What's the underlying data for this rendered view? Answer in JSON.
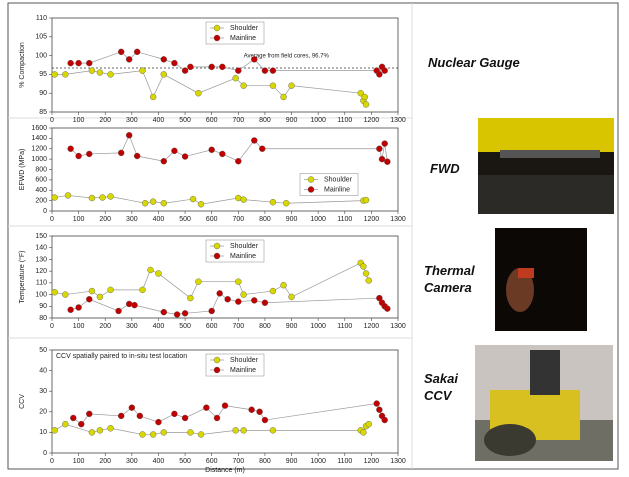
{
  "chart_data": [
    {
      "type": "line",
      "ylabel": "% Compaction",
      "ylim": [
        85,
        110
      ],
      "yticks": [
        85,
        90,
        95,
        100,
        105,
        110
      ],
      "xlim": [
        0,
        1300
      ],
      "xticks": [
        0,
        100,
        200,
        300,
        400,
        500,
        600,
        700,
        800,
        900,
        1000,
        1100,
        1200,
        1300
      ],
      "legend": "upper center",
      "reference_line": {
        "value": 96.7,
        "label": "Average from field cores, 96.7%"
      },
      "series": [
        {
          "name": "Shoulder",
          "color": "#d8d800",
          "x": [
            10,
            50,
            150,
            180,
            220,
            340,
            380,
            420,
            550,
            690,
            720,
            830,
            870,
            900,
            1160,
            1170,
            1175,
            1180
          ],
          "values": [
            95,
            95,
            96,
            95.5,
            95,
            96,
            89,
            95,
            90,
            94,
            92,
            92,
            89,
            92,
            90,
            88,
            89,
            87
          ]
        },
        {
          "name": "Mainline",
          "color": "#c00000",
          "x": [
            70,
            100,
            140,
            260,
            290,
            320,
            420,
            460,
            500,
            520,
            600,
            640,
            700,
            760,
            800,
            830,
            1220,
            1230,
            1240,
            1250
          ],
          "values": [
            98,
            98,
            98,
            101,
            99,
            101,
            99,
            98,
            96,
            97,
            97,
            97,
            96,
            99,
            96,
            96,
            96,
            95,
            97,
            96
          ]
        }
      ]
    },
    {
      "type": "line",
      "ylabel": "EFWD (MPa)",
      "ylim": [
        0,
        1600
      ],
      "yticks": [
        0,
        200,
        400,
        600,
        800,
        1000,
        1200,
        1400,
        1600
      ],
      "xlim": [
        0,
        1300
      ],
      "xticks": [
        0,
        100,
        200,
        300,
        400,
        500,
        600,
        700,
        800,
        900,
        1000,
        1100,
        1200,
        1300
      ],
      "legend": "center right",
      "series": [
        {
          "name": "Shoulder",
          "color": "#d8d800",
          "x": [
            10,
            60,
            150,
            190,
            220,
            350,
            380,
            420,
            530,
            560,
            700,
            720,
            830,
            880,
            1170,
            1180
          ],
          "values": [
            260,
            300,
            250,
            260,
            280,
            150,
            180,
            150,
            230,
            130,
            250,
            220,
            170,
            150,
            200,
            210
          ]
        },
        {
          "name": "Mainline",
          "color": "#c00000",
          "x": [
            70,
            100,
            140,
            260,
            290,
            320,
            420,
            460,
            500,
            600,
            640,
            700,
            760,
            790,
            1230,
            1240,
            1250,
            1260
          ],
          "values": [
            1200,
            1060,
            1100,
            1120,
            1460,
            1060,
            960,
            1160,
            1050,
            1180,
            1100,
            960,
            1360,
            1200,
            1200,
            1000,
            1300,
            950
          ]
        }
      ]
    },
    {
      "type": "line",
      "ylabel": "Temperature (°F)",
      "ylim": [
        80,
        150
      ],
      "yticks": [
        80,
        90,
        100,
        110,
        120,
        130,
        140,
        150
      ],
      "xlim": [
        0,
        1300
      ],
      "xticks": [
        0,
        100,
        200,
        300,
        400,
        500,
        600,
        700,
        800,
        900,
        1000,
        1100,
        1200,
        1300
      ],
      "legend": "upper center",
      "series": [
        {
          "name": "Shoulder",
          "color": "#d8d800",
          "x": [
            10,
            50,
            150,
            180,
            220,
            340,
            370,
            400,
            520,
            550,
            700,
            720,
            830,
            870,
            900,
            1160,
            1170,
            1180,
            1190
          ],
          "values": [
            102,
            100,
            103,
            98,
            104,
            104,
            121,
            118,
            97,
            111,
            111,
            100,
            103,
            108,
            98,
            127,
            124,
            118,
            112
          ]
        },
        {
          "name": "Mainline",
          "color": "#c00000",
          "x": [
            70,
            100,
            140,
            250,
            290,
            310,
            420,
            470,
            500,
            600,
            630,
            660,
            700,
            760,
            800,
            1230,
            1240,
            1250,
            1260
          ],
          "values": [
            87,
            89,
            96,
            86,
            92,
            91,
            85,
            83,
            84,
            86,
            101,
            96,
            94,
            95,
            93,
            97,
            93,
            90,
            88
          ]
        }
      ]
    },
    {
      "type": "line",
      "ylabel": "CCV",
      "xlabel": "Distance (m)",
      "ylim": [
        0,
        50
      ],
      "yticks": [
        0,
        10,
        20,
        30,
        40,
        50
      ],
      "xlim": [
        0,
        1300
      ],
      "xticks": [
        0,
        100,
        200,
        300,
        400,
        500,
        600,
        700,
        800,
        900,
        1000,
        1100,
        1200,
        1300
      ],
      "legend": "upper center",
      "annotation": "CCV spatially paired to in-situ test location",
      "series": [
        {
          "name": "Shoulder",
          "color": "#d8d800",
          "x": [
            10,
            50,
            150,
            180,
            220,
            340,
            380,
            420,
            520,
            560,
            690,
            720,
            830,
            1160,
            1170,
            1180,
            1190
          ],
          "values": [
            11,
            14,
            10,
            11,
            12,
            9,
            9,
            10,
            10,
            9,
            11,
            11,
            11,
            11,
            10,
            13,
            14
          ]
        },
        {
          "name": "Mainline",
          "color": "#c00000",
          "x": [
            80,
            110,
            140,
            260,
            300,
            330,
            400,
            460,
            500,
            580,
            620,
            650,
            750,
            780,
            800,
            1220,
            1230,
            1240,
            1250
          ],
          "values": [
            17,
            14,
            19,
            18,
            22,
            18,
            15,
            19,
            17,
            22,
            17,
            23,
            21,
            20,
            16,
            24,
            21,
            18,
            16
          ]
        }
      ]
    }
  ],
  "side_labels": [
    "Nuclear Gauge",
    "FWD",
    "Thermal Camera",
    "Sakai CCV"
  ]
}
